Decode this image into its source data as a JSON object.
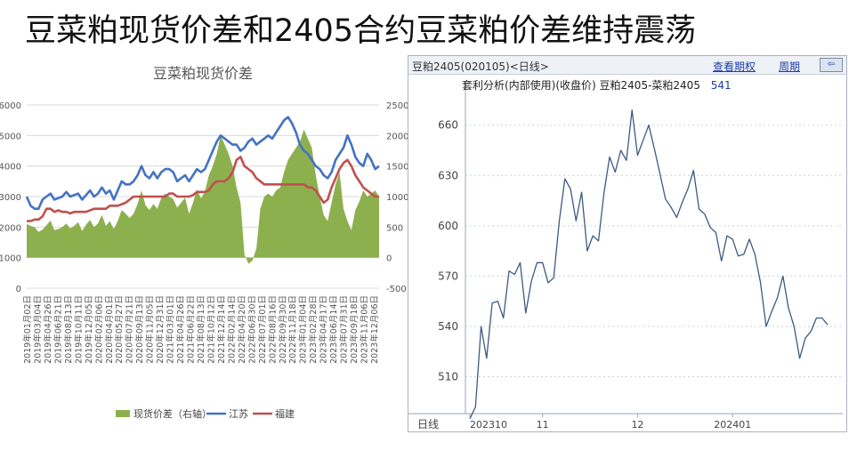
{
  "slide": {
    "title": "豆菜粕现货价差和2405合约豆菜粕价差维持震荡"
  },
  "chart_data": [
    {
      "type": "line",
      "title": "豆菜粕现货价差",
      "y_left": {
        "ticks": [
          0,
          1000,
          2000,
          3000,
          4000,
          5000,
          6000
        ],
        "range": [
          0,
          6000
        ]
      },
      "y_right": {
        "ticks": [
          -500,
          0,
          500,
          1000,
          1500,
          2000,
          2500
        ],
        "range": [
          -500,
          2500
        ]
      },
      "x_tick_labels": [
        "2019年01月02日",
        "2019年03月04日",
        "2019年04月26日",
        "2019年06月21日",
        "2019年08月13日",
        "2019年10月11日",
        "2019年12月05日",
        "2020年02月06日",
        "2020年04月01日",
        "2020年05月27日",
        "2020年07月21日",
        "2020年09月13日",
        "2020年11月05日",
        "2020年12月31日",
        "2021年03月01日",
        "2021年04月26日",
        "2021年06月22日",
        "2021年08月13日",
        "2021年10月12日",
        "2021年12月14日",
        "2022年02月14日",
        "2022年04月20日",
        "2022年06月30日",
        "2022年07月01日",
        "2022年08月16日",
        "2022年09月30日",
        "2022年11月18日",
        "2023年01月04日",
        "2023年02月28日",
        "2023年04月17日",
        "2023年06月14日",
        "2023年07月31日",
        "2023年09月18日",
        "2023年11月06日",
        "2023年12月06日"
      ],
      "legend": [
        "现货价差（右轴）",
        "江苏",
        "福建"
      ],
      "legend_position": "bottom",
      "grid": true,
      "colors": {
        "spread": "#8db04f",
        "jiangsu": "#4472c4",
        "fujian": "#c0504d"
      },
      "series": [
        {
          "name": "现货价差（右轴）",
          "axis": "right",
          "type": "area",
          "values": [
            550,
            520,
            500,
            420,
            460,
            530,
            610,
            450,
            470,
            500,
            560,
            480,
            520,
            580,
            440,
            540,
            620,
            500,
            560,
            700,
            520,
            600,
            470,
            600,
            780,
            720,
            650,
            720,
            880,
            1100,
            860,
            780,
            880,
            800,
            980,
            1050,
            1000,
            960,
            820,
            900,
            980,
            720,
            900,
            1120,
            970,
            1080,
            1350,
            1500,
            1700,
            2000,
            1850,
            1700,
            1500,
            1150,
            900,
            50,
            -100,
            -50,
            150,
            800,
            1000,
            1050,
            1000,
            1100,
            1150,
            1400,
            1600,
            1700,
            1800,
            1900,
            2100,
            1950,
            1800,
            1350,
            1000,
            700,
            600,
            900,
            1200,
            1400,
            800,
            600,
            450,
            780,
            920,
            1100,
            1000,
            1050,
            1100,
            1000
          ]
        },
        {
          "name": "江苏",
          "axis": "left",
          "values": [
            3000,
            2700,
            2600,
            2600,
            2900,
            3000,
            3100,
            2900,
            2950,
            3000,
            3150,
            3000,
            3050,
            3100,
            2900,
            3050,
            3200,
            3000,
            3100,
            3300,
            3100,
            3200,
            2900,
            3200,
            3500,
            3400,
            3400,
            3500,
            3700,
            4000,
            3700,
            3600,
            3800,
            3600,
            3800,
            3900,
            3900,
            3800,
            3500,
            3600,
            3700,
            3500,
            3700,
            3900,
            3800,
            3900,
            4200,
            4500,
            4800,
            5000,
            4900,
            4800,
            4700,
            4700,
            4500,
            4600,
            4800,
            4900,
            4700,
            4800,
            4900,
            5000,
            4900,
            5100,
            5300,
            5500,
            5600,
            5400,
            5100,
            4700,
            4500,
            4400,
            4200,
            4000,
            3900,
            3700,
            3600,
            3800,
            4200,
            4400,
            4600,
            5000,
            4700,
            4300,
            4100,
            4000,
            4400,
            4200,
            3900,
            4000
          ]
        },
        {
          "name": "福建",
          "axis": "left",
          "values": [
            2200,
            2200,
            2250,
            2250,
            2350,
            2600,
            2600,
            2500,
            2550,
            2500,
            2500,
            2450,
            2500,
            2500,
            2500,
            2500,
            2550,
            2600,
            2600,
            2600,
            2600,
            2700,
            2700,
            2700,
            2750,
            2800,
            2900,
            3000,
            3000,
            3000,
            3000,
            3000,
            3000,
            3000,
            3000,
            3000,
            3100,
            3100,
            3000,
            3000,
            3000,
            3000,
            3050,
            3150,
            3150,
            3150,
            3200,
            3400,
            3500,
            3500,
            3500,
            3600,
            3800,
            4200,
            4300,
            4000,
            3900,
            3800,
            3600,
            3500,
            3400,
            3400,
            3400,
            3400,
            3400,
            3400,
            3400,
            3400,
            3400,
            3400,
            3400,
            3300,
            3300,
            3200,
            3000,
            2800,
            2900,
            3300,
            3600,
            3900,
            4100,
            4200,
            4000,
            3700,
            3500,
            3300,
            3200,
            3100,
            3000,
            3000
          ]
        }
      ]
    },
    {
      "type": "line",
      "header": {
        "title": "豆粕2405(020105)<日线>",
        "link_view": "查看期权",
        "link_period": "周期",
        "back_icon": "back-arrow-icon"
      },
      "subtitle": "套利分析(内部使用)(收盘价) 豆粕2405-菜粕2405",
      "last_value": "541",
      "y_ticks": [
        510,
        540,
        570,
        600,
        630,
        660
      ],
      "y_range": [
        488,
        680
      ],
      "x_label": "日线",
      "x_tick_labels": [
        "202310",
        "11",
        "12",
        "202401"
      ],
      "x_tick_positions": [
        0,
        13,
        30,
        47
      ],
      "color": "#3d5a80",
      "grid": true,
      "values": [
        485,
        492,
        540,
        521,
        554,
        555,
        545,
        573,
        571,
        578,
        548,
        567,
        578,
        578,
        566,
        569,
        603,
        628,
        622,
        603,
        620,
        585,
        594,
        591,
        620,
        641,
        632,
        645,
        639,
        669,
        642,
        651,
        660,
        646,
        631,
        616,
        611,
        605,
        614,
        622,
        633,
        610,
        607,
        599,
        596,
        579,
        594,
        592,
        582,
        583,
        592,
        583,
        566,
        540,
        549,
        557,
        570,
        551,
        540,
        521,
        533,
        537,
        545,
        545,
        541
      ]
    }
  ]
}
